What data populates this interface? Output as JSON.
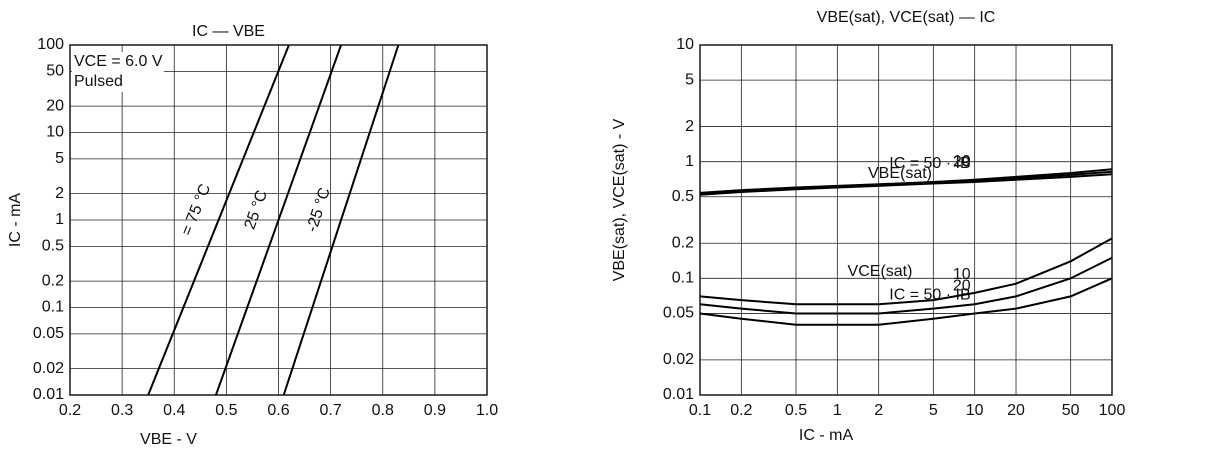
{
  "chart_data": [
    {
      "type": "line",
      "title": "IC — VBE",
      "x_label": "VBE - V",
      "y_label": "IC - mA",
      "annotations": [
        "VCE = 6.0 V",
        "Pulsed"
      ],
      "xscale": "linear",
      "yscale": "log",
      "grid": true,
      "xlim": [
        0.2,
        1
      ],
      "ylim": [
        0.01,
        100
      ],
      "xticks": [
        0.2,
        0.3,
        0.4,
        0.5,
        0.6,
        0.7,
        0.8,
        0.9,
        {
          "value": 1,
          "label": "1.0"
        }
      ],
      "yticks": [
        0.01,
        0.02,
        0.05,
        0.1,
        0.2,
        0.5,
        1,
        2,
        5,
        10,
        20,
        50,
        100
      ],
      "series": [
        {
          "name": "= 75 °C",
          "color": "#000000",
          "x": [
            0.35,
            0.62
          ],
          "values": [
            0.01,
            100
          ]
        },
        {
          "name": "25 °C",
          "color": "#000000",
          "x": [
            0.48,
            0.72
          ],
          "values": [
            0.01,
            100
          ]
        },
        {
          "name": "-25 °C",
          "color": "#000000",
          "x": [
            0.61,
            0.83
          ],
          "values": [
            0.01,
            100
          ]
        }
      ]
    },
    {
      "type": "line",
      "title": "VBE(sat), VCE(sat) — IC",
      "x_label": "IC - mA",
      "y_label": "VBE(sat), VCE(sat) - V",
      "annotations": [
        "VBE(sat)",
        "VCE(sat)"
      ],
      "xscale": "log",
      "yscale": "log",
      "grid": true,
      "xlim": [
        0.1,
        100
      ],
      "ylim": [
        0.01,
        10
      ],
      "xticks": [
        0.1,
        0.2,
        0.5,
        1,
        2,
        5,
        10,
        20,
        50,
        100
      ],
      "yticks": [
        0.01,
        0.02,
        0.05,
        0.1,
        0.2,
        0.5,
        1,
        2,
        5,
        10
      ],
      "series": [
        {
          "name": "IC = 50 · IB",
          "color": "#000000",
          "x": [
            0.1,
            0.2,
            0.5,
            1,
            2,
            5,
            10,
            20,
            50,
            100
          ],
          "values": [
            0.52,
            0.55,
            0.58,
            0.6,
            0.62,
            0.65,
            0.67,
            0.7,
            0.74,
            0.78
          ]
        },
        {
          "name": "20",
          "color": "#000000",
          "x": [
            0.1,
            0.2,
            0.5,
            1,
            2,
            5,
            10,
            20,
            50,
            100
          ],
          "values": [
            0.53,
            0.56,
            0.59,
            0.61,
            0.63,
            0.66,
            0.69,
            0.72,
            0.77,
            0.82
          ]
        },
        {
          "name": "10",
          "color": "#000000",
          "x": [
            0.1,
            0.2,
            0.5,
            1,
            2,
            5,
            10,
            20,
            50,
            100
          ],
          "values": [
            0.54,
            0.57,
            0.6,
            0.62,
            0.64,
            0.67,
            0.7,
            0.74,
            0.8,
            0.86
          ]
        },
        {
          "name": "IC = 50 · IB",
          "color": "#000000",
          "x": [
            0.1,
            0.2,
            0.5,
            1,
            2,
            5,
            10,
            20,
            50,
            100
          ],
          "values": [
            0.05,
            0.045,
            0.04,
            0.04,
            0.04,
            0.045,
            0.05,
            0.055,
            0.07,
            0.1
          ]
        },
        {
          "name": "20",
          "color": "#000000",
          "x": [
            0.1,
            0.2,
            0.5,
            1,
            2,
            5,
            10,
            20,
            50,
            100
          ],
          "values": [
            0.06,
            0.055,
            0.05,
            0.05,
            0.05,
            0.055,
            0.06,
            0.07,
            0.1,
            0.15
          ]
        },
        {
          "name": "10",
          "color": "#000000",
          "x": [
            0.1,
            0.2,
            0.5,
            1,
            2,
            5,
            10,
            20,
            50,
            100
          ],
          "values": [
            0.07,
            0.065,
            0.06,
            0.06,
            0.06,
            0.065,
            0.075,
            0.09,
            0.14,
            0.22
          ]
        }
      ]
    }
  ]
}
